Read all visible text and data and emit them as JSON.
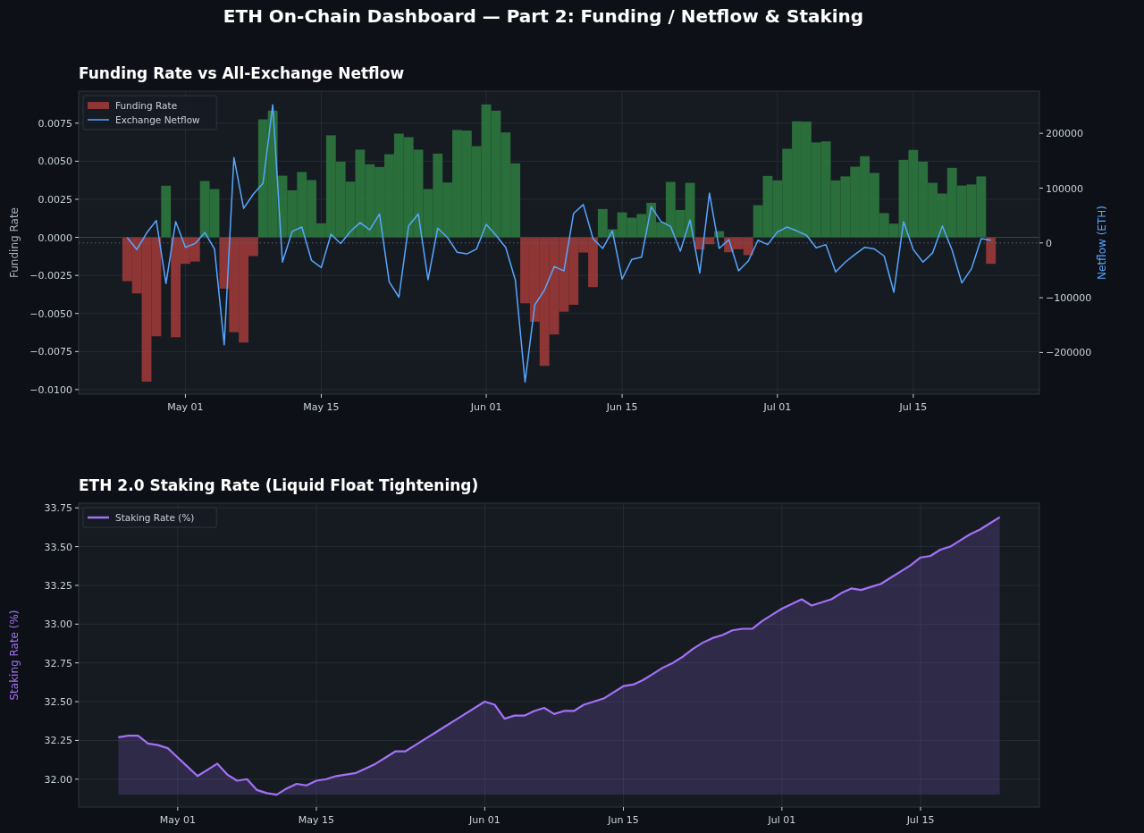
{
  "chart_data": [
    {
      "type": "bar",
      "title": "ETH On-Chain Dashboard — Part 2: Funding / Netflow & Staking",
      "subtitle": "Funding Rate vs All-Exchange Netflow",
      "ylabel": "Funding Rate",
      "y2label": "Netflow (ETH)",
      "x": [
        "--04-25",
        "--04-26",
        "--04-27",
        "--04-28",
        "--04-29",
        "--04-30",
        "--05-01",
        "--05-02",
        "--05-03",
        "--05-04",
        "--05-05",
        "--05-06",
        "--05-07",
        "--05-08",
        "--05-09",
        "--05-10",
        "--05-11",
        "--05-12",
        "--05-13",
        "--05-14",
        "--05-15",
        "--05-16",
        "--05-17",
        "--05-18",
        "--05-19",
        "--05-20",
        "--05-21",
        "--05-22",
        "--05-23",
        "--05-24",
        "--05-25",
        "--05-26",
        "--05-27",
        "--05-28",
        "--05-29",
        "--05-30",
        "--05-31",
        "--06-01",
        "--06-02",
        "--06-03",
        "--06-04",
        "--06-05",
        "--06-06",
        "--06-07",
        "--06-08",
        "--06-09",
        "--06-10",
        "--06-11",
        "--06-12",
        "--06-13",
        "--06-14",
        "--06-15",
        "--06-16",
        "--06-17",
        "--06-18",
        "--06-19",
        "--06-20",
        "--06-21",
        "--06-22",
        "--06-23",
        "--06-24",
        "--06-25",
        "--06-26",
        "--06-27",
        "--06-28",
        "--06-29",
        "--06-30",
        "--07-01",
        "--07-02",
        "--07-03",
        "--07-04",
        "--07-05",
        "--07-06",
        "--07-07",
        "--07-08",
        "--07-09",
        "--07-10",
        "--07-11",
        "--07-12",
        "--07-13",
        "--07-14",
        "--07-15",
        "--07-16",
        "--07-17",
        "--07-18",
        "--07-19",
        "--07-20",
        "--07-21",
        "--07-22",
        "--07-23"
      ],
      "xlim": [
        "--04-20",
        "--07-28"
      ],
      "xticks": [
        {
          "value": "--05-01",
          "label": "May 01"
        },
        {
          "value": "--05-15",
          "label": "May 15"
        },
        {
          "value": "--06-01",
          "label": "Jun 01"
        },
        {
          "value": "--06-15",
          "label": "Jun 15"
        },
        {
          "value": "--07-01",
          "label": "Jul 01"
        },
        {
          "value": "--07-15",
          "label": "Jul 15"
        }
      ],
      "ylim": [
        -0.0103,
        0.0096
      ],
      "yticks": [
        {
          "value": -0.01,
          "label": "−0.0100"
        },
        {
          "value": -0.0075,
          "label": "−0.0075"
        },
        {
          "value": -0.005,
          "label": "−0.0050"
        },
        {
          "value": -0.0025,
          "label": "−0.0025"
        },
        {
          "value": 0,
          "label": "0.0000"
        },
        {
          "value": 0.0025,
          "label": "0.0025"
        },
        {
          "value": 0.005,
          "label": "0.0050"
        },
        {
          "value": 0.0075,
          "label": "0.0075"
        }
      ],
      "y2lim": [
        -276000,
        277000
      ],
      "y2ticks": [
        {
          "value": -200000,
          "label": "−200000"
        },
        {
          "value": -100000,
          "label": "−100000"
        },
        0,
        100000,
        200000
      ],
      "grid": true,
      "legend": "top left",
      "ref_lines": [
        {
          "axis": "y",
          "value": 0,
          "color": "#3d434c",
          "line_style": "solid"
        },
        {
          "axis": "y2",
          "value": 0,
          "color": "#5a6070",
          "line_style": "dotted"
        }
      ],
      "series": [
        {
          "name": "Funding Rate",
          "color": "#a33b3a",
          "colors": [
            "#a33b3a",
            "#a33b3a",
            "#a33b3a",
            "#a33b3a",
            "#2e7d3f",
            "#a33b3a",
            "#a33b3a",
            "#a33b3a",
            "#2e7d3f",
            "#2e7d3f",
            "#a33b3a",
            "#a33b3a",
            "#a33b3a",
            "#a33b3a",
            "#2e7d3f",
            "#2e7d3f",
            "#2e7d3f",
            "#2e7d3f",
            "#2e7d3f",
            "#2e7d3f",
            "#2e7d3f",
            "#2e7d3f",
            "#2e7d3f",
            "#2e7d3f",
            "#2e7d3f",
            "#2e7d3f",
            "#2e7d3f",
            "#2e7d3f",
            "#2e7d3f",
            "#2e7d3f",
            "#2e7d3f",
            "#2e7d3f",
            "#2e7d3f",
            "#2e7d3f",
            "#2e7d3f",
            "#2e7d3f",
            "#2e7d3f",
            "#2e7d3f",
            "#2e7d3f",
            "#2e7d3f",
            "#2e7d3f",
            "#a33b3a",
            "#a33b3a",
            "#a33b3a",
            "#a33b3a",
            "#a33b3a",
            "#a33b3a",
            "#a33b3a",
            "#a33b3a",
            "#2e7d3f",
            "#2e7d3f",
            "#2e7d3f",
            "#2e7d3f",
            "#2e7d3f",
            "#2e7d3f",
            "#2e7d3f",
            "#2e7d3f",
            "#2e7d3f",
            "#2e7d3f",
            "#a33b3a",
            "#a33b3a",
            "#2e7d3f",
            "#a33b3a",
            "#a33b3a",
            "#a33b3a",
            "#2e7d3f",
            "#2e7d3f",
            "#2e7d3f",
            "#2e7d3f",
            "#2e7d3f",
            "#2e7d3f",
            "#2e7d3f",
            "#2e7d3f",
            "#2e7d3f",
            "#2e7d3f",
            "#2e7d3f",
            "#2e7d3f",
            "#2e7d3f",
            "#2e7d3f",
            "#2e7d3f",
            "#2e7d3f",
            "#2e7d3f",
            "#2e7d3f",
            "#2e7d3f",
            "#2e7d3f",
            "#2e7d3f",
            "#2e7d3f",
            "#2e7d3f",
            "#2e7d3f",
            "#a33b3a"
          ],
          "values": [
            -0.00288,
            -0.00368,
            -0.00948,
            -0.0065,
            0.00339,
            -0.00656,
            -0.00174,
            -0.00159,
            0.0037,
            0.00317,
            -0.00337,
            -0.00623,
            -0.00691,
            -0.00123,
            0.00775,
            0.00832,
            0.00405,
            0.00309,
            0.00429,
            0.00376,
            0.00092,
            0.0067,
            0.00497,
            0.00366,
            0.00576,
            0.0048,
            0.00462,
            0.00546,
            0.00681,
            0.00658,
            0.00576,
            0.00317,
            0.0055,
            0.0036,
            0.00705,
            0.00701,
            0.00599,
            0.00873,
            0.00832,
            0.00689,
            0.00486,
            -0.00433,
            -0.00554,
            -0.00844,
            -0.00638,
            -0.00488,
            -0.00443,
            -0.001,
            -0.00327,
            0.00186,
            0.00053,
            0.00164,
            0.00129,
            0.00153,
            0.00227,
            0.001,
            0.00364,
            0.0018,
            0.00358,
            -0.0008,
            -0.00045,
            0.00041,
            -0.00098,
            -0.00078,
            -0.00117,
            0.00211,
            0.00403,
            0.00374,
            0.00582,
            0.00762,
            0.0076,
            0.00623,
            0.0063,
            0.00374,
            0.004,
            0.00464,
            0.00533,
            0.00423,
            0.00159,
            0.0009,
            0.00509,
            0.00574,
            0.00497,
            0.00358,
            0.00288,
            0.00456,
            0.0034,
            0.00347,
            0.004,
            -0.00174
          ]
        },
        {
          "name": "Exchange Netflow",
          "type": "line",
          "axis": "y2",
          "color": "#58a6ff",
          "values": [
            10000,
            -12000,
            18000,
            41000,
            -74000,
            39000,
            -8000,
            -1000,
            19000,
            -11000,
            -186000,
            156000,
            63000,
            89000,
            109000,
            252000,
            -35000,
            21000,
            29000,
            -32000,
            -45000,
            16000,
            -1000,
            21000,
            37000,
            24000,
            53000,
            -71000,
            -99000,
            31000,
            53000,
            -67000,
            27000,
            10000,
            -17000,
            -20000,
            -11000,
            34000,
            14000,
            -8000,
            -68000,
            -254000,
            -113000,
            -86000,
            -43000,
            -51000,
            54000,
            70000,
            8000,
            -10000,
            22000,
            -66000,
            -30000,
            -26000,
            66000,
            39000,
            30000,
            -15000,
            42000,
            -55000,
            91000,
            -10000,
            6000,
            -51000,
            -33000,
            5000,
            -3000,
            20000,
            29000,
            22000,
            14000,
            -9000,
            -3000,
            -53000,
            -35000,
            -21000,
            -8000,
            -11000,
            -24000,
            -90000,
            39000,
            -12000,
            -35000,
            -18000,
            31000,
            -13000,
            -73000,
            -47000,
            8000,
            5000
          ]
        }
      ]
    },
    {
      "type": "area",
      "title": "ETH 2.0 Staking Rate (Liquid Float Tightening)",
      "ylabel": "Staking Rate (%)",
      "x": [
        "--04-25",
        "--04-26",
        "--04-27",
        "--04-28",
        "--04-29",
        "--04-30",
        "--05-01",
        "--05-02",
        "--05-03",
        "--05-04",
        "--05-05",
        "--05-06",
        "--05-07",
        "--05-08",
        "--05-09",
        "--05-10",
        "--05-11",
        "--05-12",
        "--05-13",
        "--05-14",
        "--05-15",
        "--05-16",
        "--05-17",
        "--05-18",
        "--05-19",
        "--05-20",
        "--05-21",
        "--05-22",
        "--05-23",
        "--05-24",
        "--05-25",
        "--05-26",
        "--05-27",
        "--05-28",
        "--05-29",
        "--05-30",
        "--05-31",
        "--06-01",
        "--06-02",
        "--06-03",
        "--06-04",
        "--06-05",
        "--06-06",
        "--06-07",
        "--06-08",
        "--06-09",
        "--06-10",
        "--06-11",
        "--06-12",
        "--06-13",
        "--06-14",
        "--06-15",
        "--06-16",
        "--06-17",
        "--06-18",
        "--06-19",
        "--06-20",
        "--06-21",
        "--06-22",
        "--06-23",
        "--06-24",
        "--06-25",
        "--06-26",
        "--06-27",
        "--06-28",
        "--06-29",
        "--06-30",
        "--07-01",
        "--07-02",
        "--07-03",
        "--07-04",
        "--07-05",
        "--07-06",
        "--07-07",
        "--07-08",
        "--07-09",
        "--07-10",
        "--07-11",
        "--07-12",
        "--07-13",
        "--07-14",
        "--07-15",
        "--07-16",
        "--07-17",
        "--07-18",
        "--07-19",
        "--07-20",
        "--07-21",
        "--07-22",
        "--07-23"
      ],
      "xlim": [
        "--04-21",
        "--07-27"
      ],
      "xticks": [
        {
          "value": "--05-01",
          "label": "May 01"
        },
        {
          "value": "--05-15",
          "label": "May 15"
        },
        {
          "value": "--06-01",
          "label": "Jun 01"
        },
        {
          "value": "--06-15",
          "label": "Jun 15"
        },
        {
          "value": "--07-01",
          "label": "Jul 01"
        },
        {
          "value": "--07-15",
          "label": "Jul 15"
        }
      ],
      "ylim": [
        31.82,
        33.78
      ],
      "yticks": [
        {
          "value": 32,
          "label": "32.00"
        },
        32.25,
        {
          "value": 32.5,
          "label": "32.50"
        },
        32.75,
        {
          "value": 33,
          "label": "33.00"
        },
        33.25,
        {
          "value": 33.5,
          "label": "33.50"
        },
        33.75
      ],
      "grid": true,
      "legend": "top left",
      "series": [
        {
          "name": "Staking Rate (%)",
          "color": "#a371f7",
          "values": [
            32.27,
            32.28,
            32.28,
            32.23,
            32.22,
            32.2,
            32.14,
            32.08,
            32.02,
            32.06,
            32.1,
            32.03,
            31.99,
            32.0,
            31.93,
            31.91,
            31.9,
            31.94,
            31.97,
            31.96,
            31.99,
            32.0,
            32.02,
            32.03,
            32.04,
            32.07,
            32.1,
            32.14,
            32.18,
            32.18,
            32.22,
            32.26,
            32.3,
            32.34,
            32.38,
            32.42,
            32.46,
            32.5,
            32.48,
            32.39,
            32.41,
            32.41,
            32.44,
            32.46,
            32.42,
            32.44,
            32.44,
            32.48,
            32.5,
            32.52,
            32.56,
            32.6,
            32.61,
            32.64,
            32.68,
            32.72,
            32.75,
            32.79,
            32.84,
            32.88,
            32.91,
            32.93,
            32.96,
            32.97,
            32.97,
            33.02,
            33.06,
            33.1,
            33.13,
            33.16,
            33.12,
            33.14,
            33.16,
            33.2,
            33.23,
            33.22,
            33.24,
            33.26,
            33.3,
            33.34,
            33.38,
            33.43,
            33.44,
            33.48,
            33.5,
            33.54,
            33.58,
            33.61,
            33.65,
            33.69
          ]
        }
      ]
    }
  ]
}
